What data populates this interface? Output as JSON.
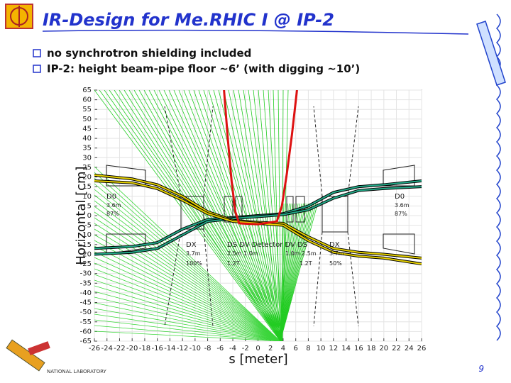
{
  "slide": {
    "title": "IR-Design for Me.RHIC I @ IP-2",
    "bullets": [
      "no synchrotron shielding included",
      "IP-2: height beam-pipe floor ~6’ (with digging ~10’)"
    ],
    "footer": "NATIONAL LABORATORY",
    "page_number": "9"
  },
  "chart_data": {
    "type": "line",
    "x_label": "s [meter]",
    "y_label": "Horizontal [cm]",
    "xlim": [
      -26,
      26
    ],
    "ylim": [
      -65,
      65
    ],
    "xticks": [
      -26,
      -24,
      -22,
      -20,
      -18,
      -16,
      -14,
      -12,
      -10,
      -8,
      -6,
      -4,
      -2,
      0,
      2,
      4,
      6,
      8,
      10,
      12,
      14,
      16,
      18,
      20,
      22,
      24,
      26
    ],
    "yticks": [
      -65,
      -60,
      -55,
      -50,
      -45,
      -40,
      -35,
      -30,
      -25,
      -20,
      -15,
      -10,
      -5,
      0,
      5,
      10,
      15,
      20,
      25,
      30,
      35,
      40,
      45,
      50,
      55,
      60,
      65
    ],
    "grid": true,
    "x": [
      -26,
      -20,
      -16,
      -12,
      -8,
      -4,
      0,
      4,
      8,
      12,
      16,
      20,
      26
    ],
    "series": [
      {
        "color": "#22aa88",
        "outline": "#000000",
        "values": [
          -17,
          -16,
          -14,
          -7,
          -2,
          -1,
          0,
          1,
          5,
          12,
          15,
          16,
          18
        ]
      },
      {
        "color": "#22aa88",
        "outline": "#000000",
        "values": [
          -20,
          -19,
          -17,
          -10,
          -3,
          -1.5,
          -0.5,
          0.5,
          3,
          9,
          13,
          14,
          15
        ]
      },
      {
        "color": "#e8d200",
        "outline": "#000000",
        "values": [
          21,
          19,
          16,
          10,
          2,
          -2.5,
          -3.5,
          -4,
          -11,
          -17,
          -19,
          -20,
          -22
        ]
      },
      {
        "color": "#e8d200",
        "outline": "#000000",
        "values": [
          18,
          17,
          14,
          8,
          1,
          -3,
          -4,
          -5,
          -13,
          -19,
          -21,
          -22,
          -25
        ]
      },
      {
        "color": "#dd1111",
        "x": [
          -5.4,
          -4.8,
          -4.2,
          -3.6,
          -3,
          0,
          3,
          3.8,
          4.6,
          5.4,
          6.2
        ],
        "values": [
          65,
          40,
          18,
          2,
          -4,
          -4.5,
          -3,
          5,
          22,
          42,
          65
        ]
      }
    ],
    "magnet_labels": [
      "D0",
      "3.6m",
      "87%",
      "D0",
      "3.6m",
      "87%",
      "DX",
      "3.7m",
      "100%",
      "DS DV Detector DV DS",
      "2.5m 1.0m",
      "1.0m 2.5m",
      "1.2T",
      "1.2T",
      "DX",
      "3.7m",
      "50%"
    ]
  }
}
